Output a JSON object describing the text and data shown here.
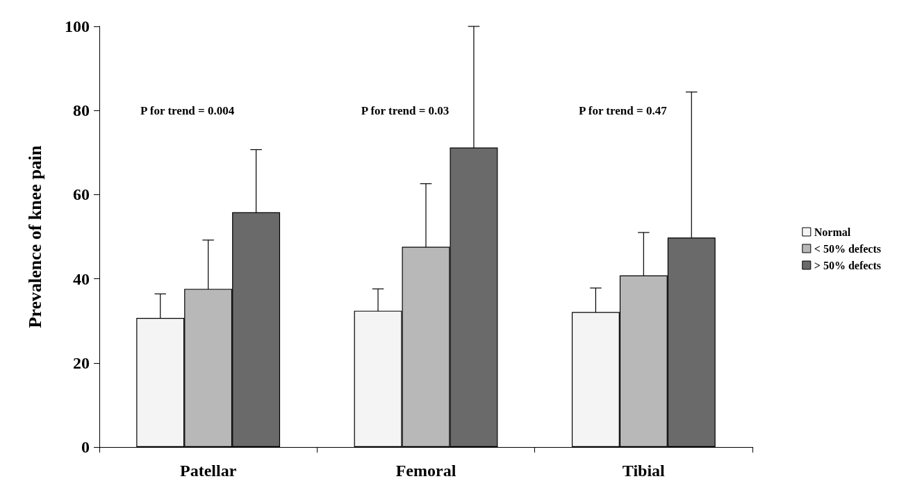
{
  "chart_data": {
    "type": "bar",
    "ylabel": "Prevalence of knee pain",
    "categories": [
      "Patellar",
      "Femoral",
      "Tibial"
    ],
    "series": [
      {
        "name": "Normal",
        "color": "#f4f4f4",
        "values": [
          30.7,
          32.4,
          32.1
        ],
        "errors": [
          5.7,
          5.2,
          5.7
        ]
      },
      {
        "name": "< 50% defects",
        "color": "#b8b8b8",
        "values": [
          37.6,
          47.6,
          40.8
        ],
        "errors": [
          11.6,
          15,
          10.2
        ]
      },
      {
        "name": "> 50% defects",
        "color": "#6a6a6a",
        "values": [
          55.8,
          71.2,
          49.8
        ],
        "errors": [
          14.9,
          28.8,
          34.6
        ]
      }
    ],
    "ylim": [
      0,
      100
    ],
    "yticks": [
      0,
      20,
      40,
      60,
      80,
      100
    ],
    "grid": false,
    "legend": "right",
    "annotations": [
      "P for trend = 0.004",
      "P for trend = 0.03",
      "P for trend = 0.47"
    ]
  }
}
